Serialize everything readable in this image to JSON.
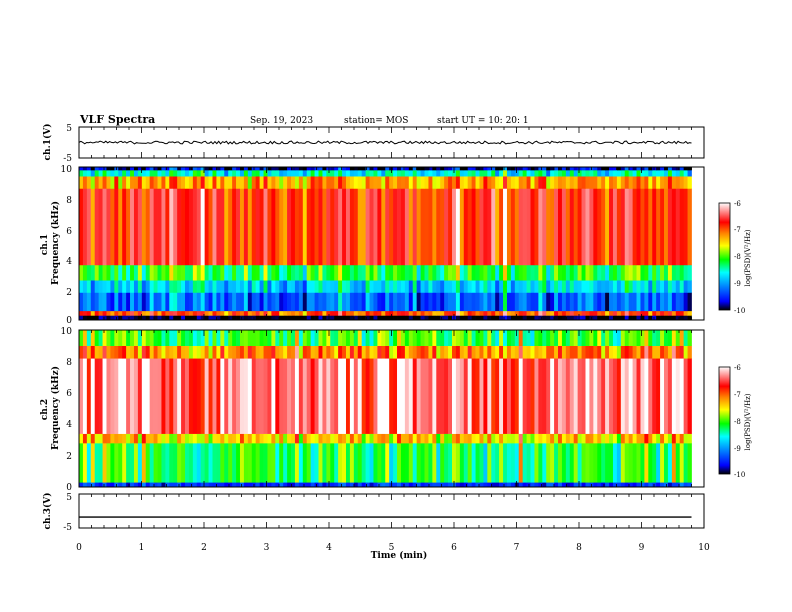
{
  "header": {
    "title": "VLF Spectra",
    "date": "Sep. 19, 2023",
    "station": "station= MOS",
    "start_ut": "start  UT =   10: 20: 1"
  },
  "colors": {
    "spectrogram_scale": [
      "#000000",
      "#0000ff",
      "#00a0ff",
      "#00ffff",
      "#00ff00",
      "#ffff00",
      "#ff8000",
      "#ff0000",
      "#ffffff"
    ],
    "trace": "#000000"
  },
  "chart_data": [
    {
      "type": "line",
      "panel": "ch1-waveform",
      "ylabel": "ch.1(V)",
      "ylim": [
        -5,
        5
      ],
      "y_ticklabels": [
        "5",
        "-5"
      ],
      "xlim": [
        0,
        10
      ],
      "series": [
        {
          "x": [
            0,
            9.8
          ],
          "y": [
            0,
            0
          ]
        }
      ]
    },
    {
      "type": "heatmap",
      "panel": "ch1-spectrogram",
      "ylabel": "ch.1\nFrequency (kHz)",
      "ylim": [
        0,
        10
      ],
      "y_ticklabels": [
        "0",
        "2",
        "4",
        "6",
        "8",
        "10"
      ],
      "xlim": [
        0,
        10
      ],
      "data_end_min": 9.8,
      "colorbar": {
        "label": "log(PSD)(V²/Hz)",
        "range": [
          -10,
          -6
        ],
        "ticklabels": [
          "-6",
          "-7",
          "-8",
          "-9",
          "-10"
        ]
      },
      "bands_khz": [
        {
          "range": [
            0,
            0.3
          ],
          "level": -10
        },
        {
          "range": [
            0.3,
            0.6
          ],
          "level": -7
        },
        {
          "range": [
            0.6,
            1.8
          ],
          "level": -9.3
        },
        {
          "range": [
            1.8,
            2.6
          ],
          "level": -8.8
        },
        {
          "range": [
            2.6,
            3.6
          ],
          "level": -8.2
        },
        {
          "range": [
            3.6,
            8.6
          ],
          "level": -6.8
        },
        {
          "range": [
            8.6,
            9.4
          ],
          "level": -7.3
        },
        {
          "range": [
            9.4,
            9.8
          ],
          "level": -8.6
        },
        {
          "range": [
            9.8,
            10
          ],
          "level": -9.8
        }
      ]
    },
    {
      "type": "heatmap",
      "panel": "ch2-spectrogram",
      "ylabel": "ch.2\nFrequency (kHz)",
      "ylim": [
        0,
        10
      ],
      "y_ticklabels": [
        "0",
        "2",
        "4",
        "6",
        "8",
        "10"
      ],
      "xlim": [
        0,
        10
      ],
      "data_end_min": 9.8,
      "colorbar": {
        "label": "log(PSD)(V²/Hz)",
        "range": [
          -10,
          -6
        ],
        "ticklabels": [
          "-6",
          "-7",
          "-8",
          "-9",
          "-10"
        ]
      },
      "bands_khz": [
        {
          "range": [
            0,
            0.3
          ],
          "level": -9.5
        },
        {
          "range": [
            0.3,
            2.8
          ],
          "level": -8.2
        },
        {
          "range": [
            2.8,
            3.4
          ],
          "level": -7.5
        },
        {
          "range": [
            3.4,
            8.2
          ],
          "level": -6.4
        },
        {
          "range": [
            8.2,
            9.0
          ],
          "level": -7.2
        },
        {
          "range": [
            9.0,
            10
          ],
          "level": -8.1
        }
      ]
    },
    {
      "type": "line",
      "panel": "ch3-waveform",
      "ylabel": "ch.3(V)",
      "ylim": [
        -5,
        5
      ],
      "y_ticklabels": [
        "5",
        "-5"
      ],
      "xlim": [
        0,
        10
      ],
      "x_ticklabels": [
        "0",
        "1",
        "2",
        "3",
        "4",
        "5",
        "6",
        "7",
        "8",
        "9",
        "10"
      ],
      "xlabel": "Time  (min)",
      "series": [
        {
          "x": [
            0,
            9.8
          ],
          "y": [
            -1.8,
            -1.8
          ]
        }
      ]
    }
  ]
}
